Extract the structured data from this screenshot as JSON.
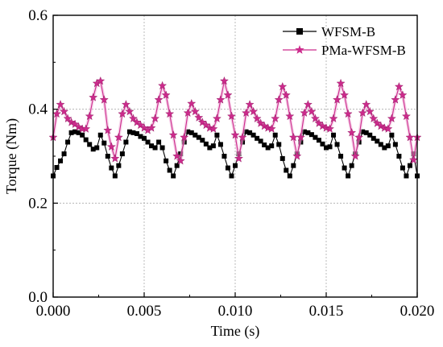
{
  "chart_data": {
    "type": "line",
    "title": "",
    "xlabel": "Time (s)",
    "ylabel": "Torque (Nm)",
    "xlim": [
      0.0,
      0.02
    ],
    "ylim": [
      0.0,
      0.6
    ],
    "xticks": [
      "0.000",
      "0.005",
      "0.010",
      "0.015",
      "0.020"
    ],
    "yticks": [
      "0.0",
      "0.2",
      "0.4",
      "0.6"
    ],
    "grid": true,
    "legend_position": "top-right",
    "series": [
      {
        "name": "WFSM-B",
        "color": "#000000",
        "marker": "square",
        "x": [
          0.0,
          0.0002,
          0.0004,
          0.0006,
          0.0008,
          0.001,
          0.0012,
          0.0014,
          0.0016,
          0.0018,
          0.002,
          0.0022,
          0.0024,
          0.0026,
          0.0028,
          0.003,
          0.0032,
          0.0034,
          0.0036,
          0.0038,
          0.004,
          0.0042,
          0.0044,
          0.0046,
          0.0048,
          0.005,
          0.0052,
          0.0054,
          0.0056,
          0.0058,
          0.006,
          0.0062,
          0.0064,
          0.0066,
          0.0068,
          0.007,
          0.0072,
          0.0074,
          0.0076,
          0.0078,
          0.008,
          0.0082,
          0.0084,
          0.0086,
          0.0088,
          0.009,
          0.0092,
          0.0094,
          0.0096,
          0.0098,
          0.01,
          0.0102,
          0.0104,
          0.0106,
          0.0108,
          0.011,
          0.0112,
          0.0114,
          0.0116,
          0.0118,
          0.012,
          0.0122,
          0.0124,
          0.0126,
          0.0128,
          0.013,
          0.0132,
          0.0134,
          0.0136,
          0.0138,
          0.014,
          0.0142,
          0.0144,
          0.0146,
          0.0148,
          0.015,
          0.0152,
          0.0154,
          0.0156,
          0.0158,
          0.016,
          0.0162,
          0.0164,
          0.0166,
          0.0168,
          0.017,
          0.0172,
          0.0174,
          0.0176,
          0.0178,
          0.018,
          0.0182,
          0.0184,
          0.0186,
          0.0188,
          0.019,
          0.0192,
          0.0194,
          0.0196,
          0.0198,
          0.02
        ],
        "values": [
          0.258,
          0.276,
          0.29,
          0.305,
          0.33,
          0.35,
          0.352,
          0.35,
          0.345,
          0.335,
          0.325,
          0.315,
          0.318,
          0.345,
          0.328,
          0.3,
          0.275,
          0.258,
          0.28,
          0.305,
          0.33,
          0.352,
          0.35,
          0.348,
          0.342,
          0.338,
          0.33,
          0.322,
          0.318,
          0.33,
          0.318,
          0.29,
          0.27,
          0.258,
          0.28,
          0.305,
          0.33,
          0.352,
          0.35,
          0.345,
          0.34,
          0.334,
          0.326,
          0.318,
          0.322,
          0.345,
          0.325,
          0.3,
          0.275,
          0.258,
          0.28,
          0.305,
          0.33,
          0.352,
          0.35,
          0.345,
          0.338,
          0.332,
          0.324,
          0.318,
          0.322,
          0.345,
          0.325,
          0.295,
          0.27,
          0.258,
          0.28,
          0.305,
          0.33,
          0.352,
          0.35,
          0.346,
          0.34,
          0.334,
          0.326,
          0.318,
          0.32,
          0.345,
          0.325,
          0.3,
          0.275,
          0.258,
          0.28,
          0.305,
          0.33,
          0.352,
          0.35,
          0.345,
          0.338,
          0.332,
          0.325,
          0.318,
          0.322,
          0.345,
          0.325,
          0.3,
          0.275,
          0.258,
          0.28,
          0.305,
          0.258
        ]
      },
      {
        "name": "PMa-WFSM-B",
        "color": "#cc2a8c",
        "marker": "star",
        "x": [
          0.0,
          0.0002,
          0.0004,
          0.0006,
          0.0008,
          0.001,
          0.0012,
          0.0014,
          0.0016,
          0.0018,
          0.002,
          0.0022,
          0.0024,
          0.0026,
          0.0028,
          0.003,
          0.0032,
          0.0034,
          0.0036,
          0.0038,
          0.004,
          0.0042,
          0.0044,
          0.0046,
          0.0048,
          0.005,
          0.0052,
          0.0054,
          0.0056,
          0.0058,
          0.006,
          0.0062,
          0.0064,
          0.0066,
          0.0068,
          0.007,
          0.0072,
          0.0074,
          0.0076,
          0.0078,
          0.008,
          0.0082,
          0.0084,
          0.0086,
          0.0088,
          0.009,
          0.0092,
          0.0094,
          0.0096,
          0.0098,
          0.01,
          0.0102,
          0.0104,
          0.0106,
          0.0108,
          0.011,
          0.0112,
          0.0114,
          0.0116,
          0.0118,
          0.012,
          0.0122,
          0.0124,
          0.0126,
          0.0128,
          0.013,
          0.0132,
          0.0134,
          0.0136,
          0.0138,
          0.014,
          0.0142,
          0.0144,
          0.0146,
          0.0148,
          0.015,
          0.0152,
          0.0154,
          0.0156,
          0.0158,
          0.016,
          0.0162,
          0.0164,
          0.0166,
          0.0168,
          0.017,
          0.0172,
          0.0174,
          0.0176,
          0.0178,
          0.018,
          0.0182,
          0.0184,
          0.0186,
          0.0188,
          0.019,
          0.0192,
          0.0194,
          0.0196,
          0.0198,
          0.02
        ],
        "values": [
          0.34,
          0.39,
          0.41,
          0.395,
          0.38,
          0.372,
          0.368,
          0.362,
          0.358,
          0.358,
          0.385,
          0.425,
          0.455,
          0.46,
          0.42,
          0.355,
          0.32,
          0.295,
          0.34,
          0.39,
          0.41,
          0.395,
          0.38,
          0.372,
          0.366,
          0.36,
          0.355,
          0.36,
          0.38,
          0.42,
          0.45,
          0.43,
          0.39,
          0.345,
          0.3,
          0.29,
          0.34,
          0.392,
          0.412,
          0.395,
          0.382,
          0.372,
          0.366,
          0.36,
          0.358,
          0.38,
          0.42,
          0.46,
          0.43,
          0.385,
          0.345,
          0.295,
          0.34,
          0.392,
          0.41,
          0.395,
          0.38,
          0.37,
          0.364,
          0.36,
          0.358,
          0.38,
          0.42,
          0.448,
          0.43,
          0.385,
          0.34,
          0.3,
          0.34,
          0.392,
          0.41,
          0.395,
          0.38,
          0.37,
          0.364,
          0.36,
          0.358,
          0.38,
          0.42,
          0.455,
          0.43,
          0.39,
          0.35,
          0.3,
          0.34,
          0.392,
          0.41,
          0.395,
          0.38,
          0.37,
          0.364,
          0.36,
          0.358,
          0.38,
          0.42,
          0.448,
          0.43,
          0.385,
          0.34,
          0.292,
          0.34
        ]
      }
    ]
  }
}
